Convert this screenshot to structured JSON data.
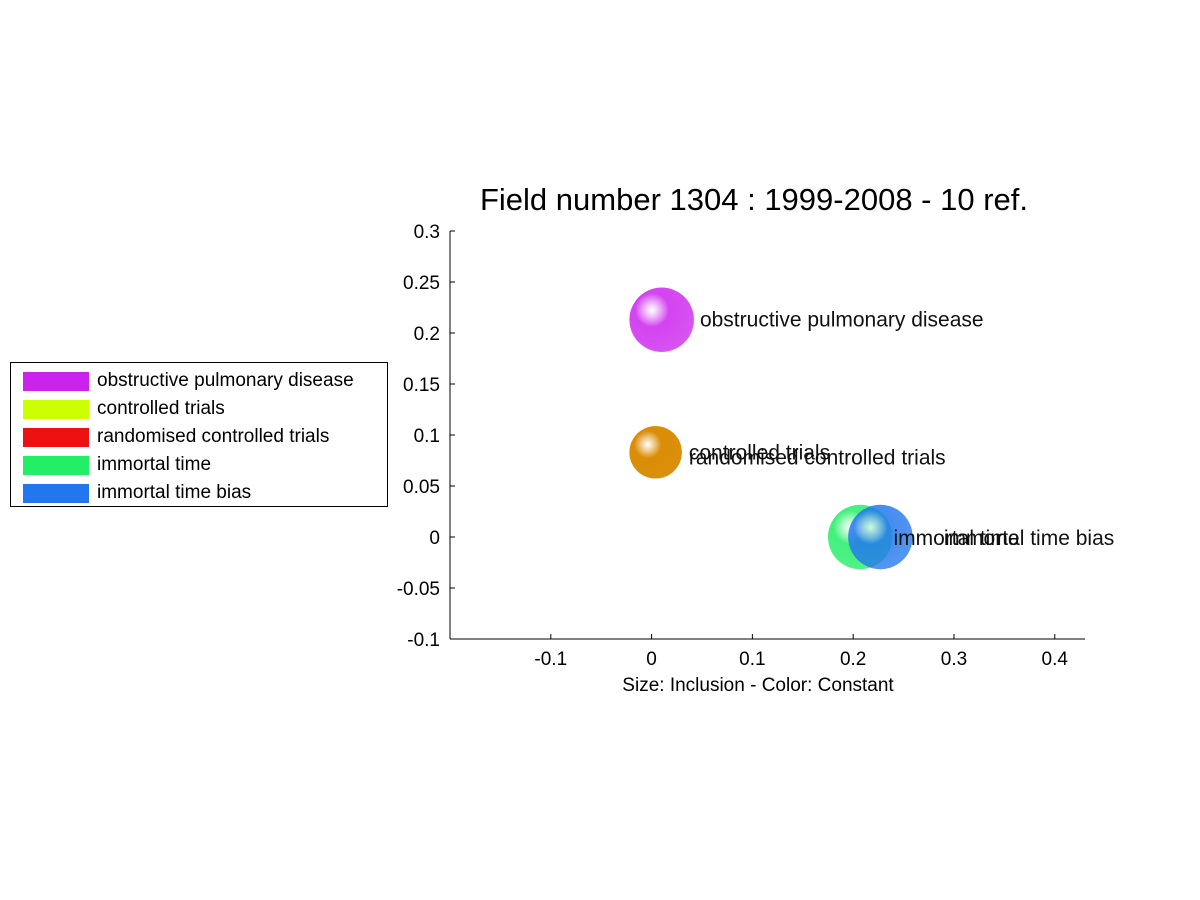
{
  "chart_data": {
    "type": "scatter",
    "title": "Field number 1304 : 1999-2008  - 10 ref.",
    "xlabel": "Size: Inclusion - Color: Constant",
    "ylabel": "",
    "xlim": [
      -0.2,
      0.43
    ],
    "ylim": [
      -0.1,
      0.3
    ],
    "xticks": [
      -0.1,
      0,
      0.1,
      0.2,
      0.3,
      0.4
    ],
    "yticks": [
      -0.1,
      -0.05,
      0,
      0.05,
      0.1,
      0.15,
      0.2,
      0.25,
      0.3
    ],
    "grid": false,
    "legend_position": "left",
    "series": [
      {
        "name": "obstructive pulmonary disease",
        "color": "#cc22ee",
        "x": 0.01,
        "y": 0.213,
        "size": 0.032
      },
      {
        "name": "controlled trials",
        "color": "#ccff00",
        "x": 0.004,
        "y": 0.083,
        "size": 0.026
      },
      {
        "name": "randomised controlled trials",
        "color": "#ee1111",
        "x": 0.004,
        "y": 0.083,
        "size": 0.026
      },
      {
        "name": "immortal time",
        "color": "#22ee66",
        "x": 0.207,
        "y": 0.0,
        "size": 0.032
      },
      {
        "name": "immortal time bias",
        "color": "#2277ee",
        "x": 0.227,
        "y": 0.0,
        "size": 0.032
      }
    ],
    "point_labels": [
      {
        "text": "obstructive pulmonary disease",
        "x": 0.048,
        "y": 0.213
      },
      {
        "text": "controlled trials",
        "x": 0.037,
        "y": 0.083
      },
      {
        "text": "randomised controlled trials",
        "x": 0.037,
        "y": 0.078
      },
      {
        "text": "immortal time",
        "x": 0.24,
        "y": -0.001
      },
      {
        "text": "immortal time bias",
        "x": 0.29,
        "y": -0.001
      }
    ]
  }
}
